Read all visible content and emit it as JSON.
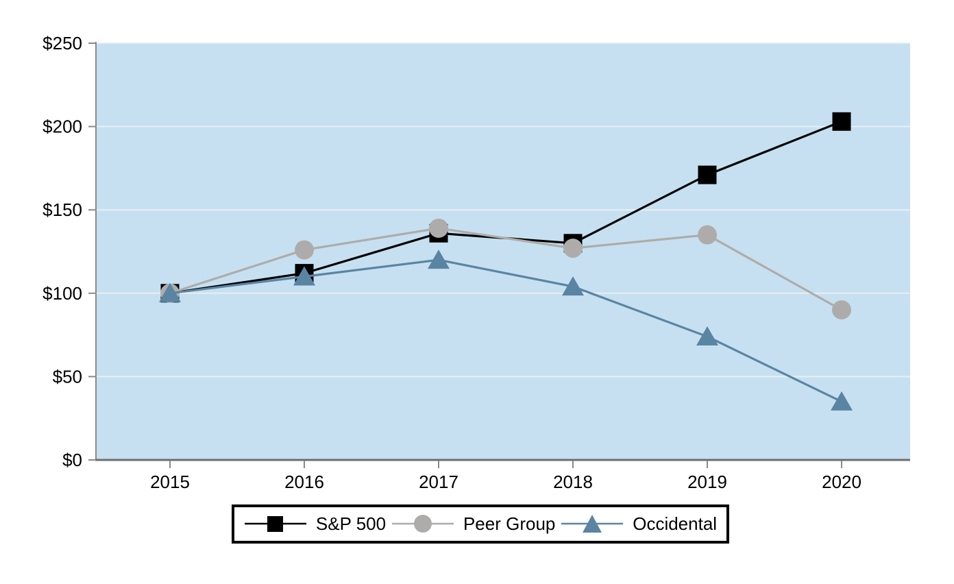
{
  "chart_data": {
    "type": "line",
    "title": "",
    "x_categories": [
      "2015",
      "2016",
      "2017",
      "2018",
      "2019",
      "2020"
    ],
    "series": [
      {
        "name": "S&P 500",
        "marker": "square",
        "color": "#000000",
        "values": [
          100,
          112,
          136,
          130,
          171,
          203
        ]
      },
      {
        "name": "Peer Group",
        "marker": "circle",
        "color": "#aeacaa",
        "values": [
          100,
          126,
          139,
          127,
          135,
          90
        ]
      },
      {
        "name": "Occidental",
        "marker": "triangle",
        "color": "#5a85a2",
        "values": [
          100,
          110,
          120,
          104,
          74,
          35
        ]
      }
    ],
    "ylim": [
      0,
      250
    ],
    "yticks": [
      0,
      50,
      100,
      150,
      200,
      250
    ],
    "ytick_labels": [
      "$0",
      "$50",
      "$100",
      "$150",
      "$200",
      "$250"
    ],
    "grid": "horizontal",
    "legend_position": "bottom-center-boxed",
    "colors": {
      "plot_bg": "#c6e0f1",
      "grid": "#e8eef3",
      "y_axis": "#8a8a8a",
      "x_axis": "#6e6e6e",
      "tick": "#8a8a8a",
      "tick_label": "#000000"
    }
  }
}
